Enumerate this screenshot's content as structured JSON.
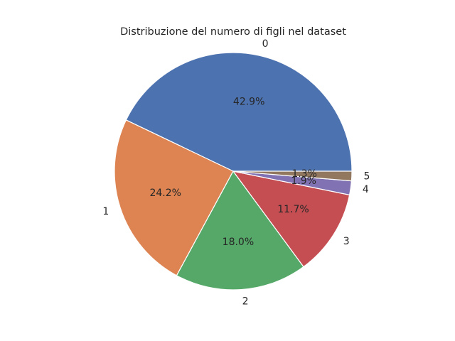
{
  "chart_data": {
    "type": "pie",
    "title": "Distribuzione del numero di figli nel dataset",
    "categories": [
      "0",
      "1",
      "2",
      "3",
      "4",
      "5"
    ],
    "values": [
      42.9,
      24.2,
      18.0,
      11.7,
      1.9,
      1.3
    ],
    "percent_labels": [
      "42.9%",
      "24.2%",
      "18.0%",
      "11.7%",
      "1.9%",
      "1.3%"
    ],
    "colors": [
      "#4c72b0",
      "#dd8452",
      "#55a868",
      "#c44e52",
      "#8172b3",
      "#937860"
    ],
    "start_angle_deg": 0,
    "direction": "counterclockwise",
    "legend": "none"
  }
}
